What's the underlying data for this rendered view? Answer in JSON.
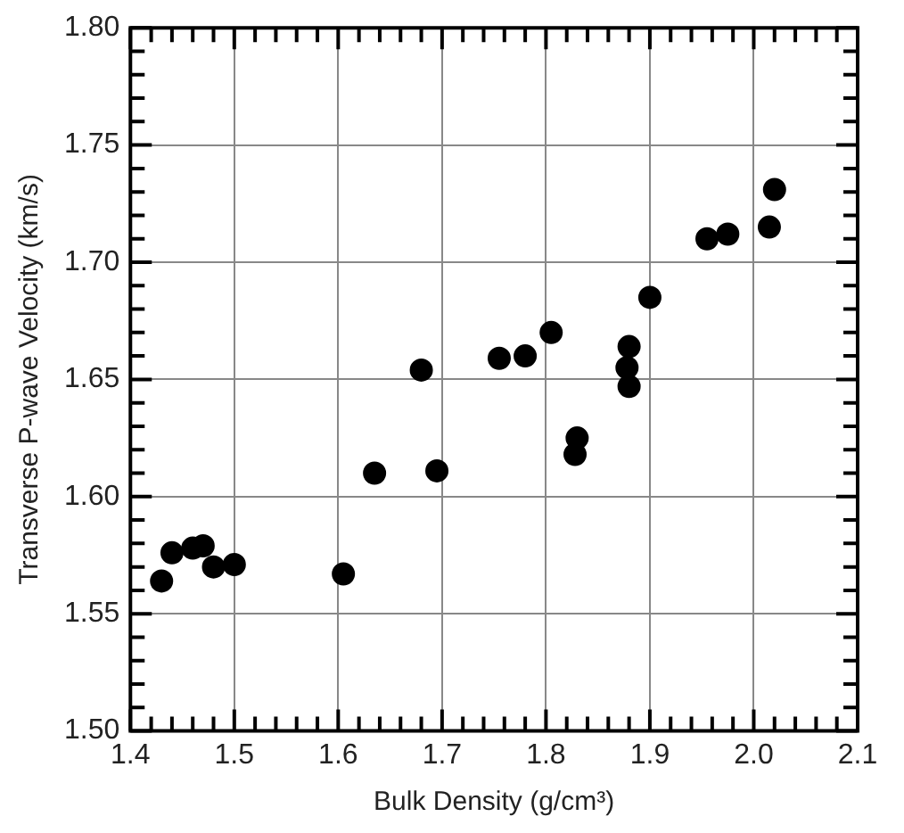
{
  "chart_data": {
    "type": "scatter",
    "xlabel": "Bulk Density (g/cm³)",
    "ylabel": "Transverse P-wave Velocity (km/s)",
    "x": [
      1.43,
      1.44,
      1.46,
      1.47,
      1.475,
      1.48,
      1.5,
      1.605,
      1.635,
      1.68,
      1.695,
      1.755,
      1.78,
      1.805,
      1.83,
      1.828,
      1.88,
      1.878,
      1.88,
      1.9,
      1.955,
      1.975,
      2.015,
      2.02
    ],
    "series": [
      {
        "color": "#000000",
        "values": [
          1.564,
          1.576,
          1.578,
          1.579,
          null,
          1.57,
          1.571,
          1.567,
          1.61,
          1.654,
          1.611,
          1.659,
          1.66,
          1.67,
          1.625,
          1.618,
          1.664,
          1.655,
          1.647,
          1.685,
          1.71,
          1.712,
          1.715,
          1.731
        ]
      }
    ],
    "xlim": [
      1.4,
      2.1
    ],
    "xticks": [
      1.4,
      {
        "value": 1.42,
        "label": null
      },
      {
        "value": 1.44,
        "label": null
      },
      {
        "value": 1.46,
        "label": null
      },
      {
        "value": 1.48,
        "label": null
      },
      1.5,
      {
        "value": 1.52,
        "label": null
      },
      {
        "value": 1.54,
        "label": null
      },
      {
        "value": 1.56,
        "label": null
      },
      {
        "value": 1.58,
        "label": null
      },
      1.6,
      {
        "value": 1.62,
        "label": null
      },
      {
        "value": 1.64,
        "label": null
      },
      {
        "value": 1.66,
        "label": null
      },
      {
        "value": 1.68,
        "label": null
      },
      1.7,
      {
        "value": 1.72,
        "label": null
      },
      {
        "value": 1.74,
        "label": null
      },
      {
        "value": 1.76,
        "label": null
      },
      {
        "value": 1.78,
        "label": null
      },
      1.8,
      {
        "value": 1.82,
        "label": null
      },
      {
        "value": 1.84,
        "label": null
      },
      {
        "value": 1.86,
        "label": null
      },
      {
        "value": 1.88,
        "label": null
      },
      1.9,
      {
        "value": 1.92,
        "label": null
      },
      {
        "value": 1.94,
        "label": null
      },
      {
        "value": 1.96,
        "label": null
      },
      {
        "value": 1.98,
        "label": null
      },
      {
        "value": 2.0,
        "label": "2.0"
      },
      {
        "value": 2.02,
        "label": null
      },
      {
        "value": 2.04,
        "label": null
      },
      {
        "value": 2.06,
        "label": null
      },
      {
        "value": 2.08,
        "label": null
      },
      2.1
    ],
    "ylim": [
      1.5,
      1.8
    ],
    "yticks": [
      {
        "value": 1.5,
        "label": "1.50"
      },
      {
        "value": 1.51,
        "label": null
      },
      {
        "value": 1.52,
        "label": null
      },
      {
        "value": 1.53,
        "label": null
      },
      {
        "value": 1.54,
        "label": null
      },
      1.55,
      {
        "value": 1.56,
        "label": null
      },
      {
        "value": 1.57,
        "label": null
      },
      {
        "value": 1.58,
        "label": null
      },
      {
        "value": 1.59,
        "label": null
      },
      {
        "value": 1.6,
        "label": "1.60"
      },
      {
        "value": 1.61,
        "label": null
      },
      {
        "value": 1.62,
        "label": null
      },
      {
        "value": 1.63,
        "label": null
      },
      {
        "value": 1.64,
        "label": null
      },
      1.65,
      {
        "value": 1.66,
        "label": null
      },
      {
        "value": 1.67,
        "label": null
      },
      {
        "value": 1.68,
        "label": null
      },
      {
        "value": 1.69,
        "label": null
      },
      {
        "value": 1.7,
        "label": "1.70"
      },
      {
        "value": 1.71,
        "label": null
      },
      {
        "value": 1.72,
        "label": null
      },
      {
        "value": 1.73,
        "label": null
      },
      {
        "value": 1.74,
        "label": null
      },
      1.75,
      {
        "value": 1.76,
        "label": null
      },
      {
        "value": 1.77,
        "label": null
      },
      {
        "value": 1.78,
        "label": null
      },
      {
        "value": 1.79,
        "label": null
      },
      {
        "value": 1.8,
        "label": "1.80"
      }
    ],
    "grid": true,
    "marker": "circle"
  }
}
